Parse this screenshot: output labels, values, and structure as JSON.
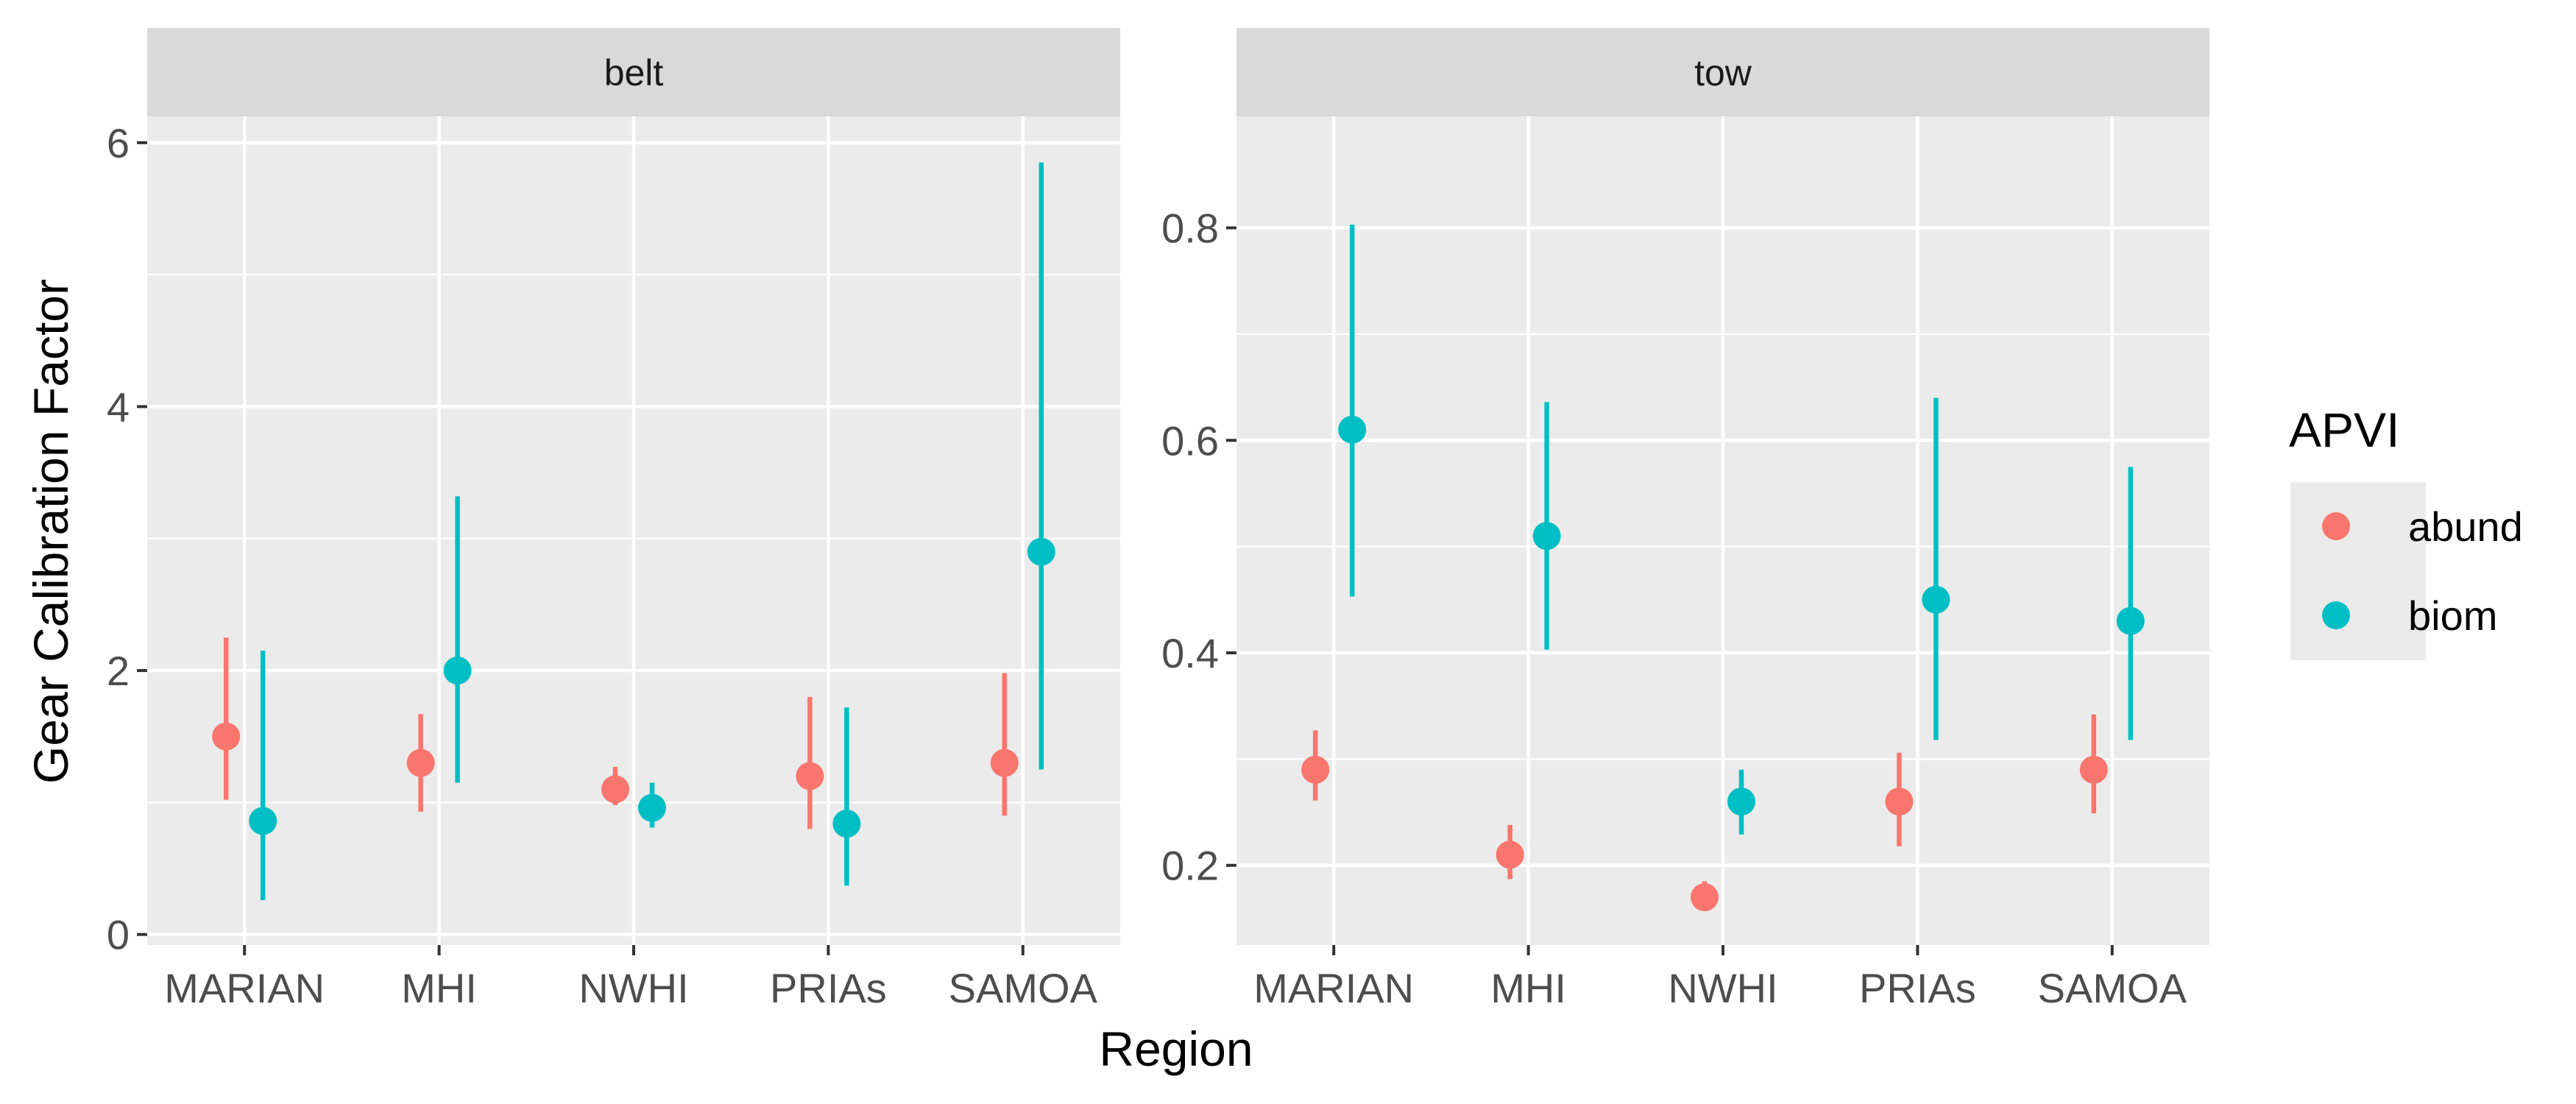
{
  "chart_data": {
    "type": "scatter",
    "subtype": "faceted point-range plot",
    "xlabel": "Region",
    "ylabel": "Gear Calibration Factor",
    "categories": [
      "MARIAN",
      "MHI",
      "NWHI",
      "PRIAs",
      "SAMOA"
    ],
    "legend": {
      "title": "APVI",
      "position": "right",
      "entries": [
        {
          "name": "abund",
          "color": "#F8766D"
        },
        {
          "name": "biom",
          "color": "#00BFC4"
        }
      ]
    },
    "grid": true,
    "panels": [
      {
        "strip": "belt",
        "ylim": [
          -0.08,
          6.2
        ],
        "yticks": [
          0,
          2,
          4,
          6
        ],
        "ytick_labels": [
          "0",
          "2",
          "4",
          "6"
        ],
        "series": [
          {
            "name": "abund",
            "color": "#F8766D",
            "values": [
              1.5,
              1.3,
              1.1,
              1.2,
              1.3
            ],
            "lower": [
              1.02,
              0.93,
              0.98,
              0.8,
              0.9
            ],
            "upper": [
              2.25,
              1.67,
              1.27,
              1.8,
              1.98
            ]
          },
          {
            "name": "biom",
            "color": "#00BFC4",
            "values": [
              0.86,
              2.0,
              0.96,
              0.84,
              2.9
            ],
            "lower": [
              0.26,
              1.15,
              0.81,
              0.37,
              1.25
            ],
            "upper": [
              2.15,
              3.32,
              1.15,
              1.72,
              5.85
            ]
          }
        ]
      },
      {
        "strip": "tow",
        "ylim": [
          0.125,
          0.905
        ],
        "yticks": [
          0.2,
          0.4,
          0.6,
          0.8
        ],
        "ytick_labels": [
          "0.2",
          "0.4",
          "0.6",
          "0.8"
        ],
        "series": [
          {
            "name": "abund",
            "color": "#F8766D",
            "values": [
              0.29,
              0.21,
              0.17,
              0.26,
              0.29
            ],
            "lower": [
              0.261,
              0.187,
              0.157,
              0.218,
              0.249
            ],
            "upper": [
              0.327,
              0.238,
              0.185,
              0.306,
              0.342
            ]
          },
          {
            "name": "biom",
            "color": "#00BFC4",
            "values": [
              0.61,
              0.51,
              0.26,
              0.45,
              0.43
            ],
            "lower": [
              0.453,
              0.403,
              0.229,
              0.318,
              0.318
            ],
            "upper": [
              0.803,
              0.636,
              0.29,
              0.64,
              0.575
            ]
          }
        ]
      }
    ]
  }
}
